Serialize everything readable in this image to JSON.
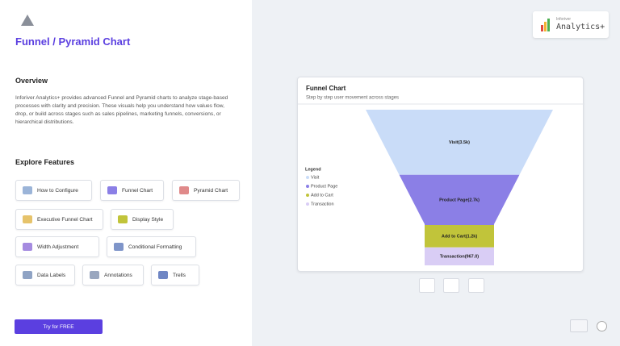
{
  "header": {
    "title": "Funnel / Pyramid Chart"
  },
  "overview": {
    "heading": "Overview",
    "text": "Inforiver Analytics+ provides advanced Funnel and Pyramid charts to analyze stage-based processes with clarity and precision. These visuals help you understand how values flow, drop, or build across stages such as sales pipelines, marketing funnels, conversions, or hierarchical distributions."
  },
  "features": {
    "heading": "Explore Features",
    "items": [
      "How to Configure",
      "Funnel Chart",
      "Pyramid Chart",
      "Executive Funnel Chart",
      "Display Style",
      "Width Adjustment",
      "Conditional Formatting",
      "Data Labels",
      "Annotations",
      "Trells"
    ]
  },
  "cta": "Try for FREE",
  "logo": {
    "small": "Inforiver",
    "main": "Analytics+"
  },
  "chart_data": {
    "type": "funnel",
    "title": "Funnel Chart",
    "subtitle": "Step by step user movement across stages",
    "legend_title": "Legend",
    "legend": "left",
    "categories": [
      "Visit",
      "Product Page",
      "Add to Cart",
      "Transaction"
    ],
    "values": [
      3500,
      2700,
      1200,
      967
    ],
    "value_labels": [
      "Visit(3.5k)",
      "Product Page(2.7k)",
      "Add to Cart(1.2k)",
      "Transaction(967.0)"
    ],
    "colors": [
      "#c9dcf8",
      "#8b7fe6",
      "#c1c43a",
      "#d9cdf5"
    ]
  }
}
